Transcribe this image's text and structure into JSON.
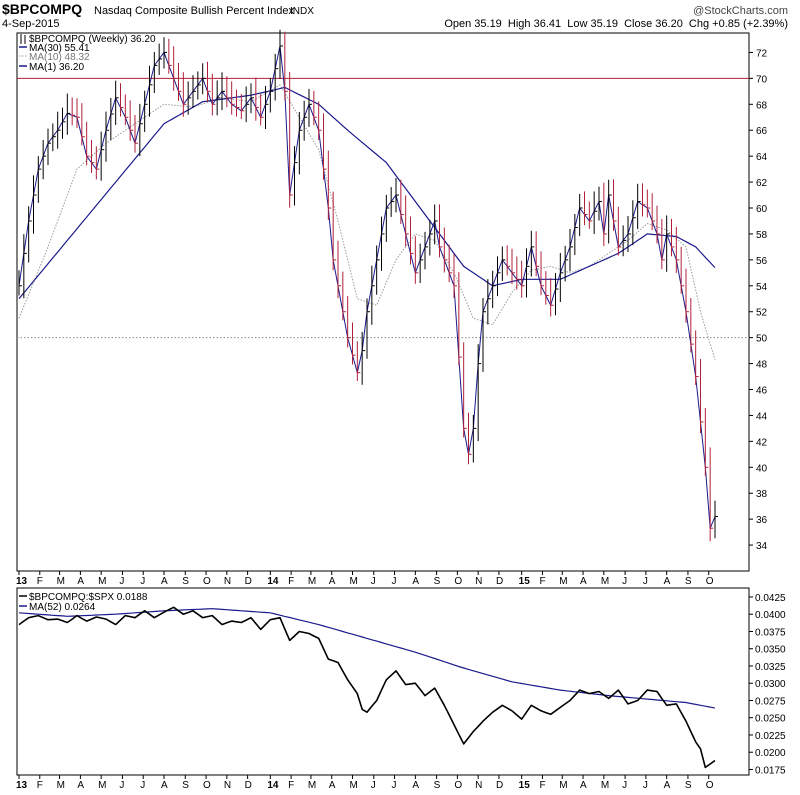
{
  "header": {
    "symbol": "$BPCOMPQ",
    "name": "Nasdaq Composite Bullish Percent Index",
    "exchange": "INDX",
    "date": "4-Sep-2015",
    "watermark": "@StockCharts.com",
    "ohlc": "Open 35.19  High 36.41  Low 35.19  Close 36.20  Chg +0.85 (+2.39%)"
  },
  "legend_main": [
    {
      "text": "$BPCOMPQ (Weekly) 36.20",
      "color": "#000000",
      "style": "bar"
    },
    {
      "text": "MA(30) 55.41",
      "color": "#1a1a8c",
      "style": "solid"
    },
    {
      "text": "MA(10) 48.32",
      "color": "#9a9a9a",
      "style": "dotted"
    },
    {
      "text": "MA(1) 36.20",
      "color": "#1a1a8c",
      "style": "solid"
    }
  ],
  "legend_lower": [
    {
      "text": "$BPCOMPQ:$SPX 0.0188",
      "color": "#000000",
      "style": "solid"
    },
    {
      "text": "MA(52) 0.0264",
      "color": "#1a1a8c",
      "style": "solid"
    }
  ],
  "x_axis": [
    {
      "label": "13",
      "bold": true,
      "idx": 0
    },
    {
      "label": "F",
      "idx": 4.3
    },
    {
      "label": "M",
      "idx": 8.4
    },
    {
      "label": "A",
      "idx": 12.7
    },
    {
      "label": "M",
      "idx": 17
    },
    {
      "label": "J",
      "idx": 21.4
    },
    {
      "label": "J",
      "idx": 25.7
    },
    {
      "label": "A",
      "idx": 30
    },
    {
      "label": "S",
      "idx": 34.4
    },
    {
      "label": "O",
      "idx": 38.7
    },
    {
      "label": "N",
      "idx": 43
    },
    {
      "label": "D",
      "idx": 47.3
    },
    {
      "label": "14",
      "bold": true,
      "idx": 52
    },
    {
      "label": "F",
      "idx": 56.3
    },
    {
      "label": "M",
      "idx": 60.4
    },
    {
      "label": "A",
      "idx": 64.7
    },
    {
      "label": "M",
      "idx": 69
    },
    {
      "label": "J",
      "idx": 73.4
    },
    {
      "label": "J",
      "idx": 77.7
    },
    {
      "label": "A",
      "idx": 82
    },
    {
      "label": "S",
      "idx": 86.4
    },
    {
      "label": "O",
      "idx": 90.7
    },
    {
      "label": "N",
      "idx": 95
    },
    {
      "label": "D",
      "idx": 99.3
    },
    {
      "label": "15",
      "bold": true,
      "idx": 104
    },
    {
      "label": "F",
      "idx": 108.3
    },
    {
      "label": "M",
      "idx": 112.4
    },
    {
      "label": "A",
      "idx": 116.7
    },
    {
      "label": "M",
      "idx": 121
    },
    {
      "label": "J",
      "idx": 125.4
    },
    {
      "label": "J",
      "idx": 129.7
    },
    {
      "label": "A",
      "idx": 134
    },
    {
      "label": "S",
      "idx": 138.4
    },
    {
      "label": "O",
      "idx": 142.7
    }
  ],
  "chart_data": [
    {
      "type": "bar",
      "title": "$BPCOMPQ Nasdaq Composite Bullish Percent Index INDX",
      "series_name": "$BPCOMPQ (Weekly)",
      "ylim": [
        32,
        73.5
      ],
      "yticks": [
        34,
        36,
        38,
        40,
        42,
        44,
        46,
        48,
        50,
        52,
        54,
        56,
        58,
        60,
        62,
        64,
        66,
        68,
        70,
        72
      ],
      "reference_lines": [
        {
          "value": 70,
          "color": "#b0203a",
          "style": "solid"
        },
        {
          "value": 50,
          "color": "#888888",
          "style": "dotted"
        }
      ],
      "grid": false,
      "legend_position": "top-left",
      "close_anchors": [
        [
          0,
          54
        ],
        [
          2,
          59
        ],
        [
          4,
          63
        ],
        [
          6,
          65
        ],
        [
          8,
          66
        ],
        [
          10,
          67.3
        ],
        [
          12,
          67
        ],
        [
          14,
          64
        ],
        [
          16,
          63
        ],
        [
          18,
          66
        ],
        [
          20,
          68.5
        ],
        [
          22,
          67
        ],
        [
          24,
          65
        ],
        [
          26,
          68
        ],
        [
          28,
          71
        ],
        [
          30,
          72
        ],
        [
          32,
          70
        ],
        [
          34,
          68
        ],
        [
          36,
          69
        ],
        [
          38,
          70
        ],
        [
          40,
          68
        ],
        [
          42,
          69
        ],
        [
          44,
          68
        ],
        [
          46,
          67.5
        ],
        [
          48,
          68.5
        ],
        [
          50,
          67
        ],
        [
          52,
          69
        ],
        [
          54,
          72.5
        ],
        [
          55,
          69
        ],
        [
          56,
          61
        ],
        [
          58,
          66
        ],
        [
          60,
          68
        ],
        [
          62,
          66
        ],
        [
          64,
          60
        ],
        [
          65,
          56
        ],
        [
          66,
          54
        ],
        [
          68,
          50
        ],
        [
          70,
          47.3
        ],
        [
          71,
          49
        ],
        [
          72,
          52
        ],
        [
          74,
          56
        ],
        [
          76,
          60
        ],
        [
          78,
          61
        ],
        [
          80,
          58
        ],
        [
          82,
          55
        ],
        [
          84,
          57
        ],
        [
          86,
          59
        ],
        [
          87,
          57
        ],
        [
          89,
          55
        ],
        [
          90,
          54
        ],
        [
          92,
          43
        ],
        [
          93,
          41
        ],
        [
          94,
          43
        ],
        [
          95,
          48
        ],
        [
          96,
          52
        ],
        [
          98,
          54
        ],
        [
          100,
          56
        ],
        [
          102,
          55
        ],
        [
          104,
          54
        ],
        [
          106,
          57
        ],
        [
          108,
          54
        ],
        [
          110,
          52.5
        ],
        [
          112,
          55
        ],
        [
          114,
          57
        ],
        [
          116,
          60
        ],
        [
          118,
          59
        ],
        [
          120,
          60.5
        ],
        [
          121,
          58
        ],
        [
          122,
          61
        ],
        [
          124,
          57
        ],
        [
          126,
          58
        ],
        [
          128,
          60.5
        ],
        [
          130,
          60
        ],
        [
          132,
          58
        ],
        [
          133,
          56
        ],
        [
          134,
          58
        ],
        [
          136,
          56
        ],
        [
          138,
          52
        ],
        [
          140,
          47
        ],
        [
          142,
          40
        ],
        [
          143,
          35.3
        ],
        [
          144,
          36.2
        ]
      ],
      "bar_range": 2.0,
      "ma30_anchors": [
        [
          0,
          53
        ],
        [
          10,
          57.5
        ],
        [
          20,
          62
        ],
        [
          30,
          66.5
        ],
        [
          38,
          68.2
        ],
        [
          48,
          68.7
        ],
        [
          55,
          69.3
        ],
        [
          62,
          68
        ],
        [
          68,
          66
        ],
        [
          76,
          63.5
        ],
        [
          84,
          59.5
        ],
        [
          92,
          55.5
        ],
        [
          98,
          54
        ],
        [
          104,
          54.5
        ],
        [
          112,
          54.5
        ],
        [
          118,
          55.5
        ],
        [
          124,
          56.5
        ],
        [
          130,
          58
        ],
        [
          136,
          57.8
        ],
        [
          140,
          57
        ],
        [
          144,
          55.4
        ]
      ],
      "ma10_anchors": [
        [
          0,
          51.5
        ],
        [
          6,
          57
        ],
        [
          12,
          63
        ],
        [
          18,
          65
        ],
        [
          24,
          66.5
        ],
        [
          30,
          68
        ],
        [
          36,
          67.8
        ],
        [
          42,
          68.5
        ],
        [
          48,
          68.2
        ],
        [
          54,
          69.5
        ],
        [
          58,
          67
        ],
        [
          62,
          64.5
        ],
        [
          66,
          59
        ],
        [
          70,
          53
        ],
        [
          74,
          52.5
        ],
        [
          78,
          56
        ],
        [
          82,
          58
        ],
        [
          86,
          57.5
        ],
        [
          90,
          55
        ],
        [
          94,
          51.5
        ],
        [
          98,
          51
        ],
        [
          102,
          53.5
        ],
        [
          106,
          55.2
        ],
        [
          110,
          55.5
        ],
        [
          114,
          55
        ],
        [
          118,
          55.5
        ],
        [
          122,
          56.5
        ],
        [
          126,
          57.5
        ],
        [
          130,
          58.8
        ],
        [
          134,
          58.3
        ],
        [
          138,
          57
        ],
        [
          141,
          52
        ],
        [
          144,
          48.3
        ]
      ]
    },
    {
      "type": "line",
      "title": "$BPCOMPQ:$SPX",
      "ylim": [
        0.0167,
        0.0438
      ],
      "yticks": [
        0.0175,
        0.02,
        0.0225,
        0.025,
        0.0275,
        0.03,
        0.0325,
        0.035,
        0.0375,
        0.04,
        0.0425
      ],
      "grid": false,
      "legend_position": "top-left",
      "ratio_anchors": [
        [
          0,
          0.0385
        ],
        [
          2,
          0.0395
        ],
        [
          4,
          0.0398
        ],
        [
          6,
          0.0392
        ],
        [
          8,
          0.0393
        ],
        [
          10,
          0.0388
        ],
        [
          12,
          0.0398
        ],
        [
          14,
          0.039
        ],
        [
          16,
          0.0396
        ],
        [
          18,
          0.0393
        ],
        [
          20,
          0.0385
        ],
        [
          22,
          0.0398
        ],
        [
          24,
          0.0395
        ],
        [
          26,
          0.0405
        ],
        [
          28,
          0.0395
        ],
        [
          30,
          0.0403
        ],
        [
          32,
          0.041
        ],
        [
          34,
          0.04
        ],
        [
          36,
          0.0405
        ],
        [
          38,
          0.0395
        ],
        [
          40,
          0.0398
        ],
        [
          42,
          0.0385
        ],
        [
          44,
          0.039
        ],
        [
          46,
          0.0388
        ],
        [
          48,
          0.0395
        ],
        [
          50,
          0.0378
        ],
        [
          52,
          0.0392
        ],
        [
          54,
          0.0395
        ],
        [
          56,
          0.0362
        ],
        [
          58,
          0.0375
        ],
        [
          60,
          0.0372
        ],
        [
          62,
          0.0365
        ],
        [
          64,
          0.0335
        ],
        [
          66,
          0.033
        ],
        [
          68,
          0.0305
        ],
        [
          70,
          0.0285
        ],
        [
          71,
          0.0262
        ],
        [
          72,
          0.0258
        ],
        [
          74,
          0.0275
        ],
        [
          76,
          0.0305
        ],
        [
          78,
          0.0318
        ],
        [
          80,
          0.0298
        ],
        [
          82,
          0.03
        ],
        [
          84,
          0.0282
        ],
        [
          86,
          0.0293
        ],
        [
          88,
          0.0268
        ],
        [
          90,
          0.024
        ],
        [
          92,
          0.0212
        ],
        [
          94,
          0.023
        ],
        [
          96,
          0.0245
        ],
        [
          98,
          0.0258
        ],
        [
          100,
          0.0268
        ],
        [
          102,
          0.026
        ],
        [
          104,
          0.0248
        ],
        [
          106,
          0.0268
        ],
        [
          108,
          0.026
        ],
        [
          110,
          0.0255
        ],
        [
          112,
          0.0265
        ],
        [
          114,
          0.0275
        ],
        [
          116,
          0.029
        ],
        [
          118,
          0.0285
        ],
        [
          120,
          0.0288
        ],
        [
          122,
          0.0278
        ],
        [
          124,
          0.029
        ],
        [
          126,
          0.027
        ],
        [
          128,
          0.0275
        ],
        [
          130,
          0.029
        ],
        [
          132,
          0.0288
        ],
        [
          134,
          0.0268
        ],
        [
          136,
          0.027
        ],
        [
          138,
          0.0245
        ],
        [
          140,
          0.0215
        ],
        [
          141,
          0.0205
        ],
        [
          142,
          0.0178
        ],
        [
          144,
          0.0188
        ]
      ],
      "ma52_anchors": [
        [
          0,
          0.0402
        ],
        [
          10,
          0.0397
        ],
        [
          20,
          0.04
        ],
        [
          30,
          0.0405
        ],
        [
          40,
          0.0408
        ],
        [
          52,
          0.0402
        ],
        [
          62,
          0.0385
        ],
        [
          72,
          0.0365
        ],
        [
          82,
          0.0345
        ],
        [
          92,
          0.0322
        ],
        [
          102,
          0.0302
        ],
        [
          112,
          0.029
        ],
        [
          122,
          0.0282
        ],
        [
          130,
          0.0277
        ],
        [
          138,
          0.0272
        ],
        [
          144,
          0.0264
        ]
      ]
    }
  ]
}
